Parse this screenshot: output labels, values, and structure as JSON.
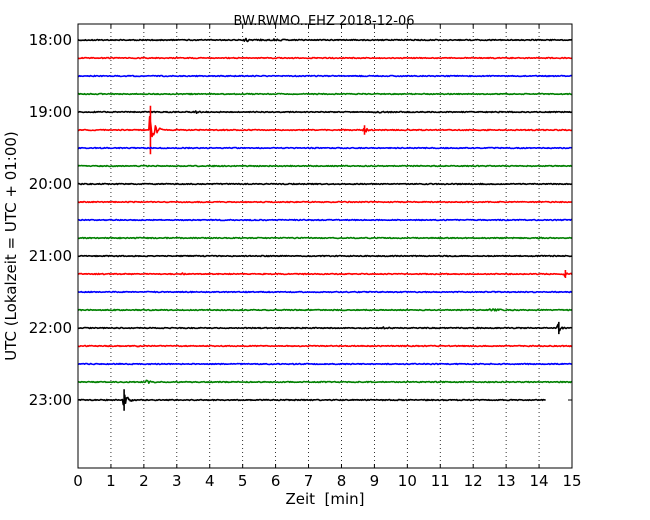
{
  "chart_data": {
    "type": "line",
    "title": "BW.RWMO..EHZ 2018-12-06",
    "xlabel": "Zeit  [min]",
    "ylabel": "UTC (Lokalzeit = UTC + 01:00)",
    "xlim": [
      0,
      15
    ],
    "x_ticks": [
      "0",
      "1",
      "2",
      "3",
      "4",
      "5",
      "6",
      "7",
      "8",
      "9",
      "10",
      "11",
      "12",
      "13",
      "14",
      "15"
    ],
    "y_ticks": [
      {
        "label": "18:00",
        "row": 0
      },
      {
        "label": "19:00",
        "row": 4
      },
      {
        "label": "20:00",
        "row": 8
      },
      {
        "label": "21:00",
        "row": 12
      },
      {
        "label": "22:00",
        "row": 16
      },
      {
        "label": "23:00",
        "row": 20
      }
    ],
    "row_minutes": 15,
    "total_rows": 24,
    "grid": "vertical-dotted",
    "color_cycle": [
      "#000000",
      "#ff0000",
      "#0000ff",
      "#008000"
    ],
    "traces": [
      {
        "start": "18:00",
        "end_min": 15,
        "events": [
          {
            "t": 5.1,
            "amp": 0.15,
            "dur": 0.9
          },
          {
            "t": 6.0,
            "amp": 0.1,
            "dur": 0.3
          }
        ]
      },
      {
        "start": "18:15",
        "end_min": 15,
        "events": []
      },
      {
        "start": "18:30",
        "end_min": 15,
        "events": []
      },
      {
        "start": "18:45",
        "end_min": 15,
        "events": []
      },
      {
        "start": "19:00",
        "end_min": 15,
        "events": [
          {
            "t": 3.6,
            "amp": 0.2,
            "dur": 0.15
          },
          {
            "t": 9.0,
            "amp": 0.08,
            "dur": 0.8
          },
          {
            "t": 12.7,
            "amp": 0.1,
            "dur": 0.1
          }
        ]
      },
      {
        "start": "19:15",
        "end_min": 15,
        "events": [
          {
            "t": 2.2,
            "amp": 1.8,
            "dur": 0.35
          },
          {
            "t": 8.7,
            "amp": 0.35,
            "dur": 0.2
          }
        ]
      },
      {
        "start": "19:30",
        "end_min": 15,
        "events": []
      },
      {
        "start": "19:45",
        "end_min": 15,
        "events": []
      },
      {
        "start": "20:00",
        "end_min": 15,
        "events": []
      },
      {
        "start": "20:15",
        "end_min": 15,
        "events": []
      },
      {
        "start": "20:30",
        "end_min": 15,
        "events": []
      },
      {
        "start": "20:45",
        "end_min": 15,
        "events": [
          {
            "t": 14.0,
            "amp": 0.05,
            "dur": 0.3
          }
        ]
      },
      {
        "start": "21:00",
        "end_min": 15,
        "events": []
      },
      {
        "start": "21:15",
        "end_min": 15,
        "events": [
          {
            "t": 3.2,
            "amp": 0.1,
            "dur": 0.1
          },
          {
            "t": 14.8,
            "amp": 0.3,
            "dur": 0.2
          }
        ]
      },
      {
        "start": "21:30",
        "end_min": 15,
        "events": []
      },
      {
        "start": "21:45",
        "end_min": 15,
        "events": [
          {
            "t": 12.5,
            "amp": 0.12,
            "dur": 0.9
          }
        ]
      },
      {
        "start": "22:00",
        "end_min": 15,
        "events": [
          {
            "t": 9.3,
            "amp": 0.1,
            "dur": 0.4
          },
          {
            "t": 14.6,
            "amp": 0.45,
            "dur": 0.2
          }
        ]
      },
      {
        "start": "22:15",
        "end_min": 15,
        "events": [
          {
            "t": 1.8,
            "amp": 0.05,
            "dur": 0.3
          }
        ]
      },
      {
        "start": "22:30",
        "end_min": 15,
        "events": []
      },
      {
        "start": "22:45",
        "end_min": 15,
        "events": [
          {
            "t": 2.1,
            "amp": 0.15,
            "dur": 0.3
          }
        ]
      },
      {
        "start": "23:00",
        "end_min": 14.2,
        "events": [
          {
            "t": 1.4,
            "amp": 0.8,
            "dur": 0.3
          }
        ]
      }
    ]
  }
}
